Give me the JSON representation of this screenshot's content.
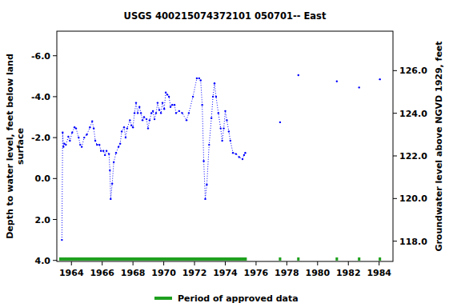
{
  "chart_data": {
    "type": "line",
    "title": "USGS 400215074372101 050701-- East",
    "ylabel": [
      "Depth to water level, feet below land",
      "surface"
    ],
    "y2label": "Groundwater level above NGVD 1929, feet",
    "color": "#0000ff",
    "marker": "dot",
    "line_style": "dotted",
    "grid": false,
    "x": [
      1963.38,
      1963.43,
      1963.48,
      1963.54,
      1963.64,
      1963.8,
      1963.9,
      1964.05,
      1964.2,
      1964.3,
      1964.47,
      1964.57,
      1964.67,
      1964.83,
      1965.0,
      1965.2,
      1965.35,
      1965.45,
      1965.55,
      1965.66,
      1965.82,
      1965.92,
      1966.08,
      1966.18,
      1966.28,
      1966.44,
      1966.5,
      1966.55,
      1966.65,
      1966.75,
      1966.9,
      1967.06,
      1967.17,
      1967.27,
      1967.42,
      1967.52,
      1967.62,
      1967.8,
      1967.9,
      1968.0,
      1968.1,
      1968.2,
      1968.31,
      1968.42,
      1968.52,
      1968.62,
      1968.72,
      1968.88,
      1968.98,
      1969.08,
      1969.2,
      1969.3,
      1969.4,
      1969.5,
      1969.6,
      1969.71,
      1969.82,
      1969.92,
      1970.03,
      1970.13,
      1970.23,
      1970.34,
      1970.44,
      1970.55,
      1970.7,
      1970.8,
      1971.0,
      1971.2,
      1971.48,
      1971.63,
      1971.9,
      1972.15,
      1972.3,
      1972.4,
      1972.5,
      1972.6,
      1972.7,
      1972.8,
      1972.95,
      1973.1,
      1973.2,
      1973.3,
      1973.4,
      1973.55,
      1973.7,
      1973.8,
      1973.9,
      1974.0,
      1974.1,
      1974.23,
      1974.33,
      1974.5,
      1974.7,
      1974.9,
      1975.12,
      1975.22,
      1975.3,
      null,
      1977.56,
      null,
      1978.75,
      null,
      1981.25,
      null,
      1982.7,
      null,
      1984.05
    ],
    "values": [
      3.0,
      -2.25,
      -1.55,
      -1.7,
      -1.65,
      -2.05,
      -1.85,
      -2.25,
      -2.5,
      -2.45,
      -2.0,
      -1.65,
      -1.55,
      -2.0,
      -2.15,
      -2.5,
      -2.8,
      -2.45,
      -1.85,
      -1.65,
      -1.65,
      -1.35,
      -1.35,
      -1.15,
      -1.35,
      -1.2,
      -0.4,
      1.0,
      0.25,
      -0.8,
      -1.25,
      -1.55,
      -1.7,
      -2.3,
      -2.5,
      -2.0,
      -2.45,
      -2.85,
      -2.6,
      -2.5,
      -3.2,
      -3.7,
      -3.2,
      -3.5,
      -3.2,
      -2.85,
      -3.0,
      -2.9,
      -2.45,
      -2.85,
      -3.2,
      -3.3,
      -2.9,
      -3.2,
      -3.7,
      -3.35,
      -3.2,
      -3.7,
      -3.4,
      -4.2,
      -4.1,
      -4.0,
      -3.5,
      -3.6,
      -3.6,
      -3.2,
      -3.3,
      -3.2,
      -2.85,
      -3.2,
      -4.0,
      -4.9,
      -4.9,
      -4.8,
      -3.6,
      -0.85,
      1.0,
      0.3,
      -1.65,
      -2.95,
      -4.0,
      -4.65,
      -4.0,
      -3.2,
      -2.45,
      -1.85,
      -2.45,
      -3.3,
      -2.85,
      -2.3,
      -1.85,
      -1.25,
      -1.2,
      -1.05,
      -0.95,
      -1.15,
      -1.25,
      null,
      -2.75,
      null,
      -5.05,
      null,
      -4.75,
      null,
      -4.45,
      null,
      -4.85
    ],
    "xlim": [
      1963.05,
      1984.9
    ],
    "xticks": [
      1964,
      1966,
      1968,
      1970,
      1972,
      1974,
      1976,
      1978,
      1980,
      1982,
      1984
    ],
    "ylim": [
      4.05,
      -7.2
    ],
    "yticks": [
      {
        "value": -6,
        "label": "-6.0"
      },
      {
        "value": -4,
        "label": "-4.0"
      },
      {
        "value": -2,
        "label": "-2.0"
      },
      {
        "value": 0,
        "label": "0.0"
      },
      {
        "value": 2,
        "label": "2.0"
      },
      {
        "value": 4,
        "label": "4.0"
      }
    ],
    "y2lim": [
      117.05,
      127.85
    ],
    "y2ticks": [
      {
        "value": 118,
        "label": "118.0"
      },
      {
        "value": 120,
        "label": "120.0"
      },
      {
        "value": 122,
        "label": "122.0"
      },
      {
        "value": 124,
        "label": "124.0"
      },
      {
        "value": 126,
        "label": "126.0"
      }
    ],
    "approved": {
      "name": "Period of approved data",
      "color": "#1fa01f",
      "periods": [
        [
          1963.2,
          1975.4
        ],
        [
          1977.48,
          1977.64
        ],
        [
          1978.67,
          1978.83
        ],
        [
          1981.17,
          1981.33
        ],
        [
          1982.62,
          1982.78
        ],
        [
          1983.97,
          1984.13
        ]
      ]
    }
  }
}
